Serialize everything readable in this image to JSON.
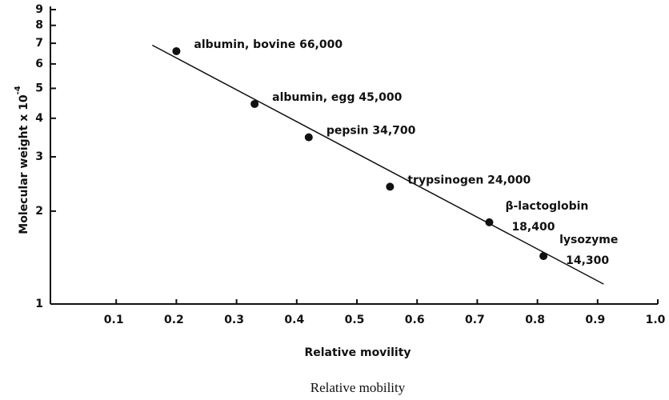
{
  "chart_data": {
    "type": "scatter",
    "log_y": true,
    "xlabel": "Relative movility",
    "ylabel": "Molecular weight x 10",
    "ylabel_exponent": "-4",
    "caption": "Relative mobility",
    "x": [
      0.2,
      0.33,
      0.42,
      0.555,
      0.72,
      0.81
    ],
    "series": [
      {
        "color": "#111111",
        "values": [
          6.6,
          4.45,
          3.47,
          2.4,
          1.84,
          1.43
        ]
      }
    ],
    "point_labels": [
      [
        "albumin, bovine 66,000"
      ],
      [
        "albumin, egg 45,000"
      ],
      [
        "pepsin 34,700"
      ],
      [
        "trypsinogen 24,000"
      ],
      [
        "β-lactoglobin",
        "18,400"
      ],
      [
        "lysozyme",
        "14,300"
      ]
    ],
    "fit": {
      "x": [
        0.16,
        0.91
      ],
      "y": [
        6.9,
        1.16
      ]
    },
    "xlim": [
      0,
      1.0
    ],
    "ylim": [
      1,
      9
    ],
    "xticks": [
      0.1,
      0.2,
      0.3,
      0.4,
      0.5,
      0.6,
      0.7,
      0.8,
      0.9,
      {
        "value": 1.0,
        "label": "1.0"
      }
    ],
    "yticks": [
      1,
      2,
      3,
      4,
      5,
      6,
      7,
      8,
      9
    ]
  }
}
